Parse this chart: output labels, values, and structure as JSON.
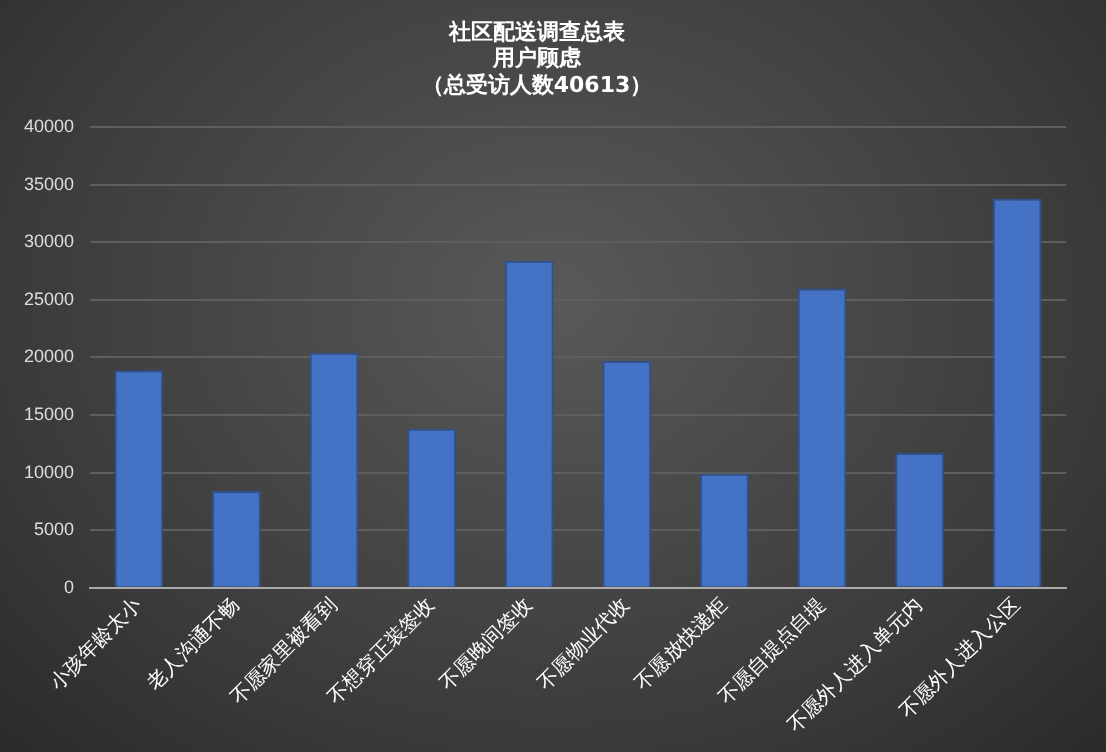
{
  "chart_data": {
    "type": "bar",
    "title": [
      "社区配送调查总表",
      "用户顾虑",
      "（总受访人数40613）"
    ],
    "categories": [
      "小孩年龄太小",
      "老人沟通不畅",
      "不愿家里被看到",
      "不想穿正装签收",
      "不愿晚间签收",
      "不愿物业代收",
      "不愿放快递柜",
      "不愿自提点自提",
      "不愿外人进入单元内",
      "不愿外人进入公区"
    ],
    "values": [
      18900,
      8400,
      20400,
      13800,
      28400,
      19700,
      9900,
      26000,
      11700,
      33800
    ],
    "color": "#4472c4",
    "ylim": [
      0,
      40000
    ],
    "yticks": [
      0,
      5000,
      10000,
      15000,
      20000,
      25000,
      30000,
      35000,
      40000
    ],
    "grid": "y"
  }
}
